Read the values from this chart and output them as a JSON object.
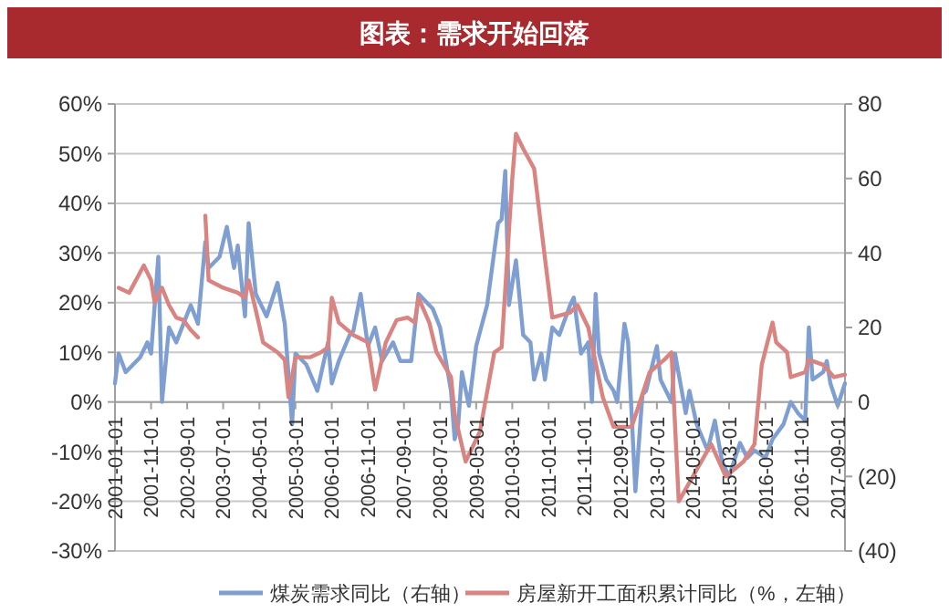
{
  "chart_data": {
    "type": "line",
    "title": "图表：需求开始回落",
    "xlim": [
      "2001-01",
      "2017-11"
    ],
    "xticks": [
      {
        "value": "2001-01",
        "label": "2001-01-01"
      },
      {
        "value": "2001-11",
        "label": "2001-11-01"
      },
      {
        "value": "2002-09",
        "label": "2002-09-01"
      },
      {
        "value": "2003-07",
        "label": "2003-07-01"
      },
      {
        "value": "2004-05",
        "label": "2004-05-01"
      },
      {
        "value": "2005-03",
        "label": "2005-03-01"
      },
      {
        "value": "2006-01",
        "label": "2006-01-01"
      },
      {
        "value": "2006-11",
        "label": "2006-11-01"
      },
      {
        "value": "2007-09",
        "label": "2007-09-01"
      },
      {
        "value": "2008-07",
        "label": "2008-07-01"
      },
      {
        "value": "2009-05",
        "label": "2009-05-01"
      },
      {
        "value": "2010-03",
        "label": "2010-03-01"
      },
      {
        "value": "2011-01",
        "label": "2011-01-01"
      },
      {
        "value": "2011-11",
        "label": "2011-11-01"
      },
      {
        "value": "2012-09",
        "label": "2012-09-01"
      },
      {
        "value": "2013-07",
        "label": "2013-07-01"
      },
      {
        "value": "2014-05",
        "label": "2014-05-01"
      },
      {
        "value": "2015-03",
        "label": "2015-03-01"
      },
      {
        "value": "2016-01",
        "label": "2016-01-01"
      },
      {
        "value": "2016-11",
        "label": "2016-11-01"
      },
      {
        "value": "2017-09",
        "label": "2017-09-01"
      }
    ],
    "ylim": [
      -30,
      60
    ],
    "yticks": [
      {
        "value": -30,
        "label": "-30%"
      },
      {
        "value": -20,
        "label": "-20%"
      },
      {
        "value": -10,
        "label": "-10%"
      },
      {
        "value": 0,
        "label": "0%"
      },
      {
        "value": 10,
        "label": "10%"
      },
      {
        "value": 20,
        "label": "20%"
      },
      {
        "value": 30,
        "label": "30%"
      },
      {
        "value": 40,
        "label": "40%"
      },
      {
        "value": 50,
        "label": "50%"
      },
      {
        "value": 60,
        "label": "60%"
      }
    ],
    "y2lim": [
      -40,
      80
    ],
    "y2ticks": [
      {
        "value": -40,
        "label": "(40)"
      },
      {
        "value": -20,
        "label": "(20)"
      },
      0,
      20,
      40,
      60,
      80
    ],
    "grid": "y",
    "legend": "bottom",
    "line_style": "solid",
    "marker": "none",
    "series": [
      {
        "name": "煤炭需求同比（右轴）",
        "color": "#7f9fd3",
        "axis": "y2",
        "x": [
          "2001-01",
          "2001-02",
          "2001-04",
          "2001-08",
          "2001-10",
          "2001-11",
          "2002-01",
          "2002-02",
          "2002-04",
          "2002-06",
          "2002-08",
          "2002-10",
          "2002-12",
          "2003-02",
          "2003-03",
          "2003-06",
          "2003-08",
          "2003-10",
          "2003-11",
          "2004-01",
          "2004-02",
          "2004-04",
          "2004-07",
          "2004-10",
          "2004-12",
          "2005-02",
          "2005-03",
          "2005-06",
          "2005-09",
          "2005-12",
          "2006-01",
          "2006-03",
          "2006-06",
          "2006-07",
          "2006-09",
          "2006-11",
          "2007-01",
          "2007-03",
          "2007-06",
          "2007-08",
          "2007-11",
          "2008-01",
          "2008-05",
          "2008-07",
          "2008-10",
          "2008-11",
          "2008-12",
          "2009-01",
          "2009-03",
          "2009-05",
          "2009-08",
          "2009-11",
          "2009-12",
          "2010-01",
          "2010-02",
          "2010-04",
          "2010-06",
          "2010-08",
          "2010-09",
          "2010-11",
          "2010-12",
          "2011-02",
          "2011-04",
          "2011-07",
          "2011-08",
          "2011-10",
          "2011-12",
          "2012-01",
          "2012-02",
          "2012-03",
          "2012-05",
          "2012-07",
          "2012-08",
          "2012-10",
          "2012-11",
          "2013-01",
          "2013-03",
          "2013-04",
          "2013-07",
          "2013-08",
          "2013-11",
          "2013-12",
          "2014-03",
          "2014-04",
          "2014-06",
          "2014-09",
          "2014-11",
          "2015-01",
          "2015-03",
          "2015-06",
          "2015-08",
          "2015-10",
          "2016-01",
          "2016-03",
          "2016-06",
          "2016-08",
          "2016-10",
          "2016-12",
          "2017-01",
          "2017-02",
          "2017-05",
          "2017-06",
          "2017-07",
          "2017-09",
          "2017-11"
        ],
        "values": [
          5,
          13,
          8,
          12,
          16,
          13,
          39,
          0,
          20,
          16,
          21,
          26,
          21,
          43,
          36,
          39,
          47,
          36,
          42,
          23,
          48,
          29,
          23,
          32,
          21,
          -6,
          13,
          10,
          3,
          16,
          5,
          11,
          18,
          19,
          29,
          15,
          20,
          11,
          16,
          11,
          11,
          29,
          25,
          20,
          3,
          -10,
          -6,
          8,
          -1,
          15,
          26,
          48,
          49,
          62,
          26,
          38,
          18,
          16,
          6,
          13,
          6,
          20,
          18,
          26,
          28,
          13,
          16,
          0,
          29,
          13,
          6,
          3,
          0,
          21,
          16,
          -24,
          2,
          3,
          15,
          6,
          0,
          13,
          -3,
          3,
          -6,
          -13,
          -5,
          -16,
          -20,
          -11,
          -15,
          -13,
          -15,
          -10,
          -6,
          0,
          -3,
          -5,
          20,
          6,
          8,
          11,
          5,
          -1,
          5
        ]
      },
      {
        "name": "房屋新开工面积累计同比（%，左轴）",
        "color": "#d98480",
        "x": [
          "2001-02",
          "2001-05",
          "2001-09",
          "2001-11",
          "2001-12",
          "2002-02",
          "2002-04",
          "2002-06",
          "2002-08",
          "2002-10",
          "2002-12",
          "2003-01",
          "2003-02",
          "2003-03",
          "2003-07",
          "2003-11",
          "2004-01",
          "2004-02",
          "2004-04",
          "2004-06",
          "2004-10",
          "2004-12",
          "2005-01",
          "2005-03",
          "2005-07",
          "2005-10",
          "2005-12",
          "2006-01",
          "2006-03",
          "2006-07",
          "2006-11",
          "2007-01",
          "2007-04",
          "2007-07",
          "2007-10",
          "2007-12",
          "2008-01",
          "2008-04",
          "2008-06",
          "2008-10",
          "2008-11",
          "2009-02",
          "2009-06",
          "2009-10",
          "2009-12",
          "2010-03",
          "2010-04",
          "2010-06",
          "2010-09",
          "2010-12",
          "2011-02",
          "2011-07",
          "2011-09",
          "2011-12",
          "2012-04",
          "2012-07",
          "2012-12",
          "2013-05",
          "2013-09",
          "2013-11",
          "2014-01",
          "2014-10",
          "2015-02",
          "2015-07",
          "2015-10",
          "2015-12",
          "2016-03",
          "2016-04",
          "2016-07",
          "2016-08",
          "2016-12",
          "2017-01",
          "2017-05",
          "2017-08",
          "2017-11"
        ],
        "values": [
          23,
          22,
          27.5,
          24.5,
          20,
          23,
          19.5,
          17,
          16.5,
          14.5,
          13,
          null,
          37.5,
          24.5,
          23,
          22,
          21,
          24.5,
          18.5,
          12,
          10,
          8.5,
          1,
          9,
          9,
          10,
          11,
          21,
          16,
          13.5,
          12,
          2.5,
          12,
          16.5,
          17,
          16,
          21,
          16,
          10,
          5,
          -2.5,
          -12,
          -6,
          10,
          11,
          45,
          54,
          51,
          47,
          29,
          17,
          18,
          19.5,
          15,
          1,
          -5,
          -5,
          6,
          8.5,
          10,
          -20,
          -8.5,
          -15,
          -12,
          -8.5,
          7.5,
          16,
          12,
          10,
          5,
          6,
          8.5,
          7.5,
          5,
          5.5
        ]
      }
    ]
  }
}
